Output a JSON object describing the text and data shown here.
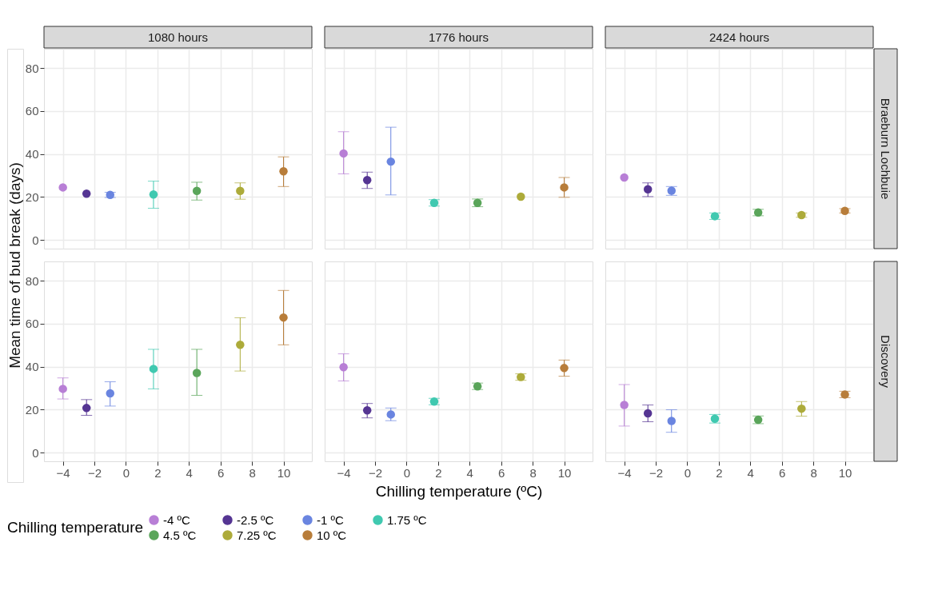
{
  "chart_data": [
    {
      "type": "scatter",
      "title": "1080 hours",
      "ylabel": "Mean time of bud break (days)",
      "legend_title": "Chilling temperature",
      "legend": "bottom",
      "xlim": [
        -5.2,
        11.8
      ],
      "xticks": [
        -4,
        -2,
        0,
        2,
        4,
        6,
        8,
        10
      ],
      "ylim": [
        -4,
        89
      ],
      "yticks": [
        0,
        20,
        40,
        60,
        80
      ],
      "grid": true,
      "tick_labels": "y",
      "marker": "circle",
      "series": [
        {
          "name": "-4 ºC",
          "color": "#b87fd6",
          "x": [
            -4
          ],
          "values": [
            24.5
          ],
          "errors": [
            null
          ]
        },
        {
          "name": "-2.5 ºC",
          "color": "#553593",
          "x": [
            -2.5
          ],
          "values": [
            21.6
          ],
          "errors": [
            null
          ]
        },
        {
          "name": "-1 ºC",
          "color": "#6a85e0",
          "x": [
            -1
          ],
          "values": [
            21.0
          ],
          "errors": [
            1.2
          ]
        },
        {
          "name": "1.75 ºC",
          "color": "#40c9b0",
          "x": [
            1.75
          ],
          "values": [
            21.2
          ],
          "errors": [
            [
              14.8,
              27.4
            ]
          ]
        },
        {
          "name": "4.5 ºC",
          "color": "#5aa55a",
          "x": [
            4.5
          ],
          "values": [
            22.9
          ],
          "errors": [
            [
              18.6,
              26.9
            ]
          ]
        },
        {
          "name": "7.25 ºC",
          "color": "#adab3a",
          "x": [
            7.25
          ],
          "values": [
            22.9
          ],
          "errors": [
            [
              19.0,
              26.6
            ]
          ]
        },
        {
          "name": "10 ºC",
          "color": "#b87d3a",
          "x": [
            10
          ],
          "values": [
            32.0
          ],
          "errors": [
            [
              24.9,
              38.7
            ]
          ]
        }
      ]
    },
    {
      "type": "scatter",
      "title": "1776 hours",
      "xlim": [
        -5.2,
        11.8
      ],
      "xticks": [
        -4,
        -2,
        0,
        2,
        4,
        6,
        8,
        10
      ],
      "ylim": [
        -4,
        89
      ],
      "yticks": [
        0,
        20,
        40,
        60,
        80
      ],
      "grid": true,
      "tick_labels": false,
      "marker": "circle",
      "series": [
        {
          "name": "-4 ºC",
          "color": "#b87fd6",
          "x": [
            -4
          ],
          "values": [
            40.3
          ],
          "errors": [
            [
              30.8,
              50.4
            ]
          ]
        },
        {
          "name": "-2.5 ºC",
          "color": "#553593",
          "x": [
            -2.5
          ],
          "values": [
            27.9
          ],
          "errors": [
            [
              24.0,
              31.6
            ]
          ]
        },
        {
          "name": "-1 ºC",
          "color": "#6a85e0",
          "x": [
            -1
          ],
          "values": [
            36.5
          ],
          "errors": [
            [
              21.0,
              52.5
            ]
          ]
        },
        {
          "name": "1.75 ºC",
          "color": "#40c9b0",
          "x": [
            1.75
          ],
          "values": [
            17.3
          ],
          "errors": [
            1.5
          ]
        },
        {
          "name": "4.5 ºC",
          "color": "#5aa55a",
          "x": [
            4.5
          ],
          "values": [
            17.3
          ],
          "errors": [
            1.8
          ]
        },
        {
          "name": "7.25 ºC",
          "color": "#adab3a",
          "x": [
            7.25
          ],
          "values": [
            20.2
          ],
          "errors": [
            null
          ]
        },
        {
          "name": "10 ºC",
          "color": "#b87d3a",
          "x": [
            10
          ],
          "values": [
            24.5
          ],
          "errors": [
            [
              19.9,
              29.1
            ]
          ]
        }
      ]
    },
    {
      "type": "scatter",
      "title": "2424 hours",
      "y2label": "Braeburn Lochbuie",
      "xlim": [
        -5.2,
        11.8
      ],
      "xticks": [
        -4,
        -2,
        0,
        2,
        4,
        6,
        8,
        10
      ],
      "ylim": [
        -4,
        89
      ],
      "yticks": [
        0,
        20,
        40,
        60,
        80
      ],
      "grid": true,
      "tick_labels": false,
      "marker": "circle",
      "series": [
        {
          "name": "-4 ºC",
          "color": "#b87fd6",
          "x": [
            -4
          ],
          "values": [
            29.1
          ],
          "errors": [
            null
          ]
        },
        {
          "name": "-2.5 ºC",
          "color": "#553593",
          "x": [
            -2.5
          ],
          "values": [
            23.6
          ],
          "errors": [
            [
              20.2,
              26.6
            ]
          ]
        },
        {
          "name": "-1 ºC",
          "color": "#6a85e0",
          "x": [
            -1
          ],
          "values": [
            23.0
          ],
          "errors": [
            [
              20.8,
              24.9
            ]
          ]
        },
        {
          "name": "1.75 ºC",
          "color": "#40c9b0",
          "x": [
            1.75
          ],
          "values": [
            11.1
          ],
          "errors": [
            1.5
          ]
        },
        {
          "name": "4.5 ºC",
          "color": "#5aa55a",
          "x": [
            4.5
          ],
          "values": [
            12.8
          ],
          "errors": [
            1.5
          ]
        },
        {
          "name": "7.25 ºC",
          "color": "#adab3a",
          "x": [
            7.25
          ],
          "values": [
            11.6
          ],
          "errors": [
            1.0
          ]
        },
        {
          "name": "10 ºC",
          "color": "#b87d3a",
          "x": [
            10
          ],
          "values": [
            13.6
          ],
          "errors": [
            1.0
          ]
        }
      ]
    },
    {
      "type": "scatter",
      "xlim": [
        -5.2,
        11.8
      ],
      "xticks": [
        -4,
        -2,
        0,
        2,
        4,
        6,
        8,
        10
      ],
      "ylim": [
        -4,
        89
      ],
      "yticks": [
        0,
        20,
        40,
        60,
        80
      ],
      "grid": true,
      "marker": "circle",
      "series": [
        {
          "name": "-4 ºC",
          "color": "#b87fd6",
          "x": [
            -4
          ],
          "values": [
            29.7
          ],
          "errors": [
            [
              25.0,
              34.8
            ]
          ]
        },
        {
          "name": "-2.5 ºC",
          "color": "#553593",
          "x": [
            -2.5
          ],
          "values": [
            20.8
          ],
          "errors": [
            [
              17.4,
              24.7
            ]
          ]
        },
        {
          "name": "-1 ºC",
          "color": "#6a85e0",
          "x": [
            -1
          ],
          "values": [
            27.6
          ],
          "errors": [
            [
              21.7,
              33.0
            ]
          ]
        },
        {
          "name": "1.75 ºC",
          "color": "#40c9b0",
          "x": [
            1.75
          ],
          "values": [
            39.0
          ],
          "errors": [
            [
              29.7,
              48.1
            ]
          ]
        },
        {
          "name": "4.5 ºC",
          "color": "#5aa55a",
          "x": [
            4.5
          ],
          "values": [
            37.1
          ],
          "errors": [
            [
              26.7,
              48.1
            ]
          ]
        },
        {
          "name": "7.25 ºC",
          "color": "#adab3a",
          "x": [
            7.25
          ],
          "values": [
            50.2
          ],
          "errors": [
            [
              38.0,
              62.8
            ]
          ]
        },
        {
          "name": "10 ºC",
          "color": "#b87d3a",
          "x": [
            10
          ],
          "values": [
            62.9
          ],
          "errors": [
            [
              50.2,
              75.5
            ]
          ]
        }
      ]
    },
    {
      "type": "scatter",
      "xlabel": "Chilling temperature (ºC)",
      "xlim": [
        -5.2,
        11.8
      ],
      "xticks": [
        -4,
        -2,
        0,
        2,
        4,
        6,
        8,
        10
      ],
      "ylim": [
        -4,
        89
      ],
      "yticks": [
        0,
        20,
        40,
        60,
        80
      ],
      "grid": true,
      "tick_labels": "x",
      "marker": "circle",
      "series": [
        {
          "name": "-4 ºC",
          "color": "#b87fd6",
          "x": [
            -4
          ],
          "values": [
            39.8
          ],
          "errors": [
            [
              33.4,
              46.0
            ]
          ]
        },
        {
          "name": "-2.5 ºC",
          "color": "#553593",
          "x": [
            -2.5
          ],
          "values": [
            19.7
          ],
          "errors": [
            [
              16.2,
              22.9
            ]
          ]
        },
        {
          "name": "-1 ºC",
          "color": "#6a85e0",
          "x": [
            -1
          ],
          "values": [
            17.8
          ],
          "errors": [
            [
              14.9,
              20.8
            ]
          ]
        },
        {
          "name": "1.75 ºC",
          "color": "#40c9b0",
          "x": [
            1.75
          ],
          "values": [
            23.8
          ],
          "errors": [
            1.5
          ]
        },
        {
          "name": "4.5 ºC",
          "color": "#5aa55a",
          "x": [
            4.5
          ],
          "values": [
            30.9
          ],
          "errors": [
            1.5
          ]
        },
        {
          "name": "7.25 ºC",
          "color": "#adab3a",
          "x": [
            7.25
          ],
          "values": [
            35.2
          ],
          "errors": [
            1.5
          ]
        },
        {
          "name": "10 ºC",
          "color": "#b87d3a",
          "x": [
            10
          ],
          "values": [
            39.4
          ],
          "errors": [
            [
              35.6,
              43.1
            ]
          ]
        }
      ]
    },
    {
      "type": "scatter",
      "y2label": "Discovery",
      "xlim": [
        -5.2,
        11.8
      ],
      "xticks": [
        -4,
        -2,
        0,
        2,
        4,
        6,
        8,
        10
      ],
      "ylim": [
        -4,
        89
      ],
      "yticks": [
        0,
        20,
        40,
        60,
        80
      ],
      "grid": true,
      "tick_labels": "x",
      "marker": "circle",
      "series": [
        {
          "name": "-4 ºC",
          "color": "#b87fd6",
          "x": [
            -4
          ],
          "values": [
            22.2
          ],
          "errors": [
            [
              12.4,
              31.7
            ]
          ]
        },
        {
          "name": "-2.5 ºC",
          "color": "#553593",
          "x": [
            -2.5
          ],
          "values": [
            18.3
          ],
          "errors": [
            [
              14.4,
              22.2
            ]
          ]
        },
        {
          "name": "-1 ºC",
          "color": "#6a85e0",
          "x": [
            -1
          ],
          "values": [
            14.8
          ],
          "errors": [
            [
              9.5,
              20.0
            ]
          ]
        },
        {
          "name": "1.75 ºC",
          "color": "#40c9b0",
          "x": [
            1.75
          ],
          "values": [
            15.8
          ],
          "errors": [
            2.0
          ]
        },
        {
          "name": "4.5 ºC",
          "color": "#5aa55a",
          "x": [
            4.5
          ],
          "values": [
            15.3
          ],
          "errors": [
            1.8
          ]
        },
        {
          "name": "7.25 ºC",
          "color": "#adab3a",
          "x": [
            7.25
          ],
          "values": [
            20.5
          ],
          "errors": [
            [
              17.0,
              23.8
            ]
          ]
        },
        {
          "name": "10 ºC",
          "color": "#b87d3a",
          "x": [
            10
          ],
          "values": [
            27.1
          ],
          "errors": [
            1.5
          ]
        }
      ]
    }
  ]
}
